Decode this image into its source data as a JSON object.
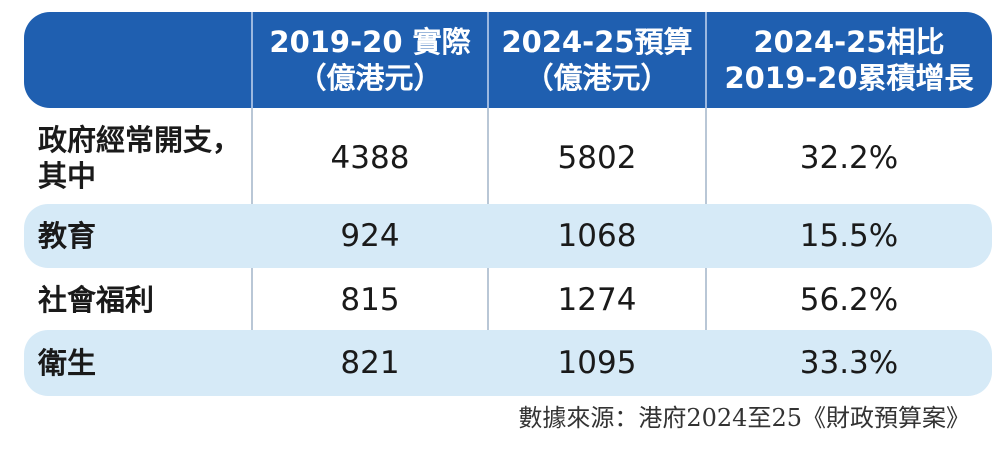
{
  "chart_data": {
    "type": "table",
    "columns": [
      "",
      "2019-20 實際\n（億港元）",
      "2024-25預算\n（億港元）",
      "2024-25相比\n2019-20累積增長"
    ],
    "header": {
      "col1": [
        "2019-20 實際",
        "（億港元）"
      ],
      "col2": [
        "2024-25預算",
        "（億港元）"
      ],
      "col3": [
        "2024-25相比",
        "2019-20累積增長"
      ]
    },
    "rows": [
      {
        "label": [
          "政府經常開支，",
          "其中"
        ],
        "actual_2019_20": "4388",
        "budget_2024_25": "5802",
        "growth": "32.2%"
      },
      {
        "label": [
          "教育"
        ],
        "actual_2019_20": "924",
        "budget_2024_25": "1068",
        "growth": "15.5%"
      },
      {
        "label": [
          "社會福利"
        ],
        "actual_2019_20": "815",
        "budget_2024_25": "1274",
        "growth": "56.2%"
      },
      {
        "label": [
          "衛生"
        ],
        "actual_2019_20": "821",
        "budget_2024_25": "1095",
        "growth": "33.3%"
      }
    ],
    "source": "數據來源：港府2024至25《財政預算案》"
  },
  "colors": {
    "header_bg": "#1f5fb0",
    "shade_row": "#d6eaf7",
    "header_text": "#ffffff"
  }
}
